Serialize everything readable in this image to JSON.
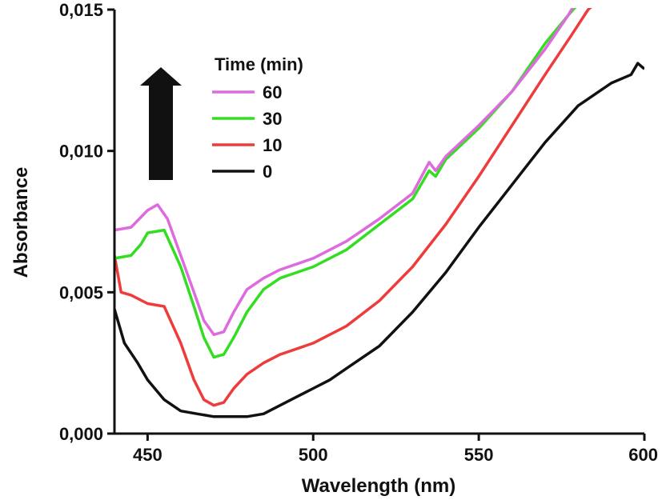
{
  "chart_data": {
    "type": "line",
    "xlabel": "Wavelength (nm)",
    "ylabel": "Absorbance",
    "xlim": [
      440,
      600
    ],
    "ylim": [
      0,
      0.015
    ],
    "x_ticks": [
      450,
      500,
      550,
      600
    ],
    "x_tick_labels": [
      "450",
      "500",
      "550",
      "600"
    ],
    "y_ticks": [
      0,
      0.005,
      0.01,
      0.015
    ],
    "y_tick_labels": [
      "0,000",
      "0,005",
      "0,010",
      "0,015"
    ],
    "grid": false,
    "legend": {
      "title": "Time (min)",
      "placement": "upper-left",
      "entries": [
        "60",
        "30",
        "10",
        "0"
      ]
    },
    "annotations": [
      {
        "type": "arrow",
        "direction": "up",
        "color": "#000000"
      }
    ],
    "series": [
      {
        "name": "60",
        "color": "#dd6bdd",
        "points": [
          [
            440,
            0.0072
          ],
          [
            445,
            0.0073
          ],
          [
            450,
            0.0079
          ],
          [
            453,
            0.0081
          ],
          [
            456,
            0.0076
          ],
          [
            460,
            0.0063
          ],
          [
            464,
            0.005
          ],
          [
            467,
            0.004
          ],
          [
            470,
            0.0035
          ],
          [
            473,
            0.0036
          ],
          [
            476,
            0.0043
          ],
          [
            480,
            0.0051
          ],
          [
            485,
            0.0055
          ],
          [
            490,
            0.0058
          ],
          [
            500,
            0.0062
          ],
          [
            510,
            0.0068
          ],
          [
            520,
            0.0076
          ],
          [
            530,
            0.0085
          ],
          [
            535,
            0.0096
          ],
          [
            537,
            0.0093
          ],
          [
            540,
            0.0098
          ],
          [
            550,
            0.0109
          ],
          [
            560,
            0.0121
          ],
          [
            570,
            0.0136
          ],
          [
            577,
            0.0148
          ],
          [
            579,
            0.0152
          ]
        ]
      },
      {
        "name": "30",
        "color": "#33dd22",
        "points": [
          [
            440,
            0.0062
          ],
          [
            445,
            0.0063
          ],
          [
            448,
            0.0067
          ],
          [
            450,
            0.0071
          ],
          [
            455,
            0.0072
          ],
          [
            460,
            0.0059
          ],
          [
            464,
            0.0045
          ],
          [
            467,
            0.0034
          ],
          [
            470,
            0.0027
          ],
          [
            473,
            0.0028
          ],
          [
            476,
            0.0034
          ],
          [
            480,
            0.0043
          ],
          [
            485,
            0.0051
          ],
          [
            490,
            0.0055
          ],
          [
            500,
            0.0059
          ],
          [
            510,
            0.0065
          ],
          [
            520,
            0.0074
          ],
          [
            530,
            0.0083
          ],
          [
            535,
            0.0093
          ],
          [
            537,
            0.0091
          ],
          [
            540,
            0.0097
          ],
          [
            550,
            0.0108
          ],
          [
            560,
            0.0121
          ],
          [
            570,
            0.0138
          ],
          [
            577,
            0.0148
          ],
          [
            580,
            0.0152
          ]
        ]
      },
      {
        "name": "10",
        "color": "#ee3b3b",
        "points": [
          [
            440,
            0.0063
          ],
          [
            442,
            0.005
          ],
          [
            445,
            0.0049
          ],
          [
            450,
            0.0046
          ],
          [
            455,
            0.0045
          ],
          [
            460,
            0.0032
          ],
          [
            464,
            0.0019
          ],
          [
            467,
            0.0012
          ],
          [
            470,
            0.001
          ],
          [
            473,
            0.0011
          ],
          [
            476,
            0.0016
          ],
          [
            480,
            0.0021
          ],
          [
            485,
            0.0025
          ],
          [
            490,
            0.0028
          ],
          [
            500,
            0.0032
          ],
          [
            510,
            0.0038
          ],
          [
            520,
            0.0047
          ],
          [
            530,
            0.0059
          ],
          [
            540,
            0.0074
          ],
          [
            550,
            0.0091
          ],
          [
            560,
            0.0109
          ],
          [
            570,
            0.0127
          ],
          [
            578,
            0.0141
          ],
          [
            583,
            0.015
          ],
          [
            585,
            0.0152
          ]
        ]
      },
      {
        "name": "0",
        "color": "#111111",
        "points": [
          [
            440,
            0.0044
          ],
          [
            443,
            0.0032
          ],
          [
            447,
            0.0025
          ],
          [
            450,
            0.0019
          ],
          [
            455,
            0.0012
          ],
          [
            460,
            0.0008
          ],
          [
            465,
            0.0007
          ],
          [
            470,
            0.0006
          ],
          [
            475,
            0.0006
          ],
          [
            480,
            0.0006
          ],
          [
            485,
            0.0007
          ],
          [
            490,
            0.001
          ],
          [
            495,
            0.0013
          ],
          [
            500,
            0.0016
          ],
          [
            505,
            0.0019
          ],
          [
            510,
            0.0023
          ],
          [
            520,
            0.0031
          ],
          [
            530,
            0.0043
          ],
          [
            540,
            0.0057
          ],
          [
            550,
            0.0073
          ],
          [
            560,
            0.0088
          ],
          [
            570,
            0.0103
          ],
          [
            580,
            0.0116
          ],
          [
            590,
            0.0124
          ],
          [
            596,
            0.0127
          ],
          [
            598,
            0.0131
          ],
          [
            600,
            0.0129
          ]
        ]
      }
    ]
  }
}
